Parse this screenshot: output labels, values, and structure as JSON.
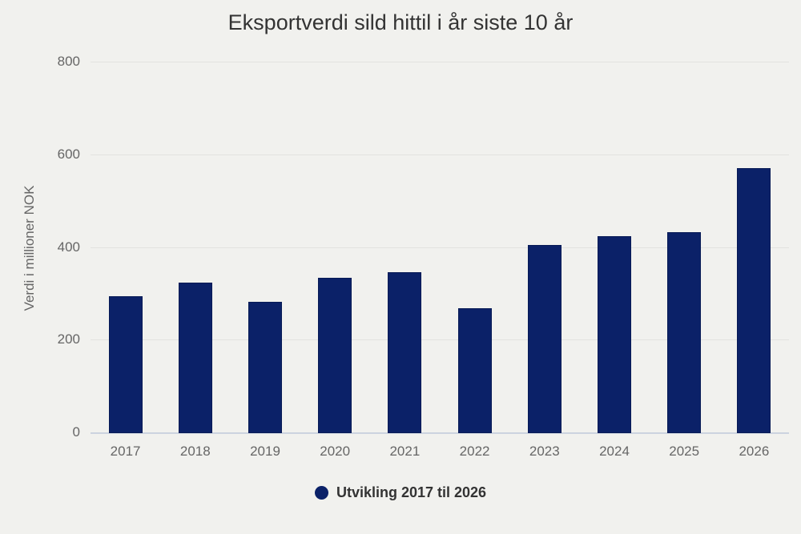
{
  "chart": {
    "title": "Eksportverdi sild hittil i år siste 10 år",
    "y_axis_title": "Verdi i millioner NOK",
    "legend_label": "Utvikling 2017 til 2026"
  },
  "chart_data": {
    "type": "bar",
    "title": "Eksportverdi sild hittil i år siste 10 år",
    "categories": [
      "2017",
      "2018",
      "2019",
      "2020",
      "2021",
      "2022",
      "2023",
      "2024",
      "2025",
      "2026"
    ],
    "values": [
      294,
      323,
      282,
      333,
      346,
      268,
      404,
      423,
      432,
      571
    ],
    "series_name": "Utvikling 2017 til 2026",
    "xlabel": "",
    "ylabel": "Verdi i millioner NOK",
    "ylim": [
      0,
      800
    ],
    "yticks": [
      0,
      200,
      400,
      600,
      800
    ],
    "grid": true,
    "legend_position": "bottom",
    "colors": {
      "bar_fill": "#0b2168",
      "bar_border": "#071a55",
      "background": "#f1f1ee",
      "grid_line": "#e2e2df",
      "axis_line": "#ccd3df",
      "title_text": "#333333",
      "axis_text": "#666666",
      "legend_text": "#333333"
    }
  }
}
